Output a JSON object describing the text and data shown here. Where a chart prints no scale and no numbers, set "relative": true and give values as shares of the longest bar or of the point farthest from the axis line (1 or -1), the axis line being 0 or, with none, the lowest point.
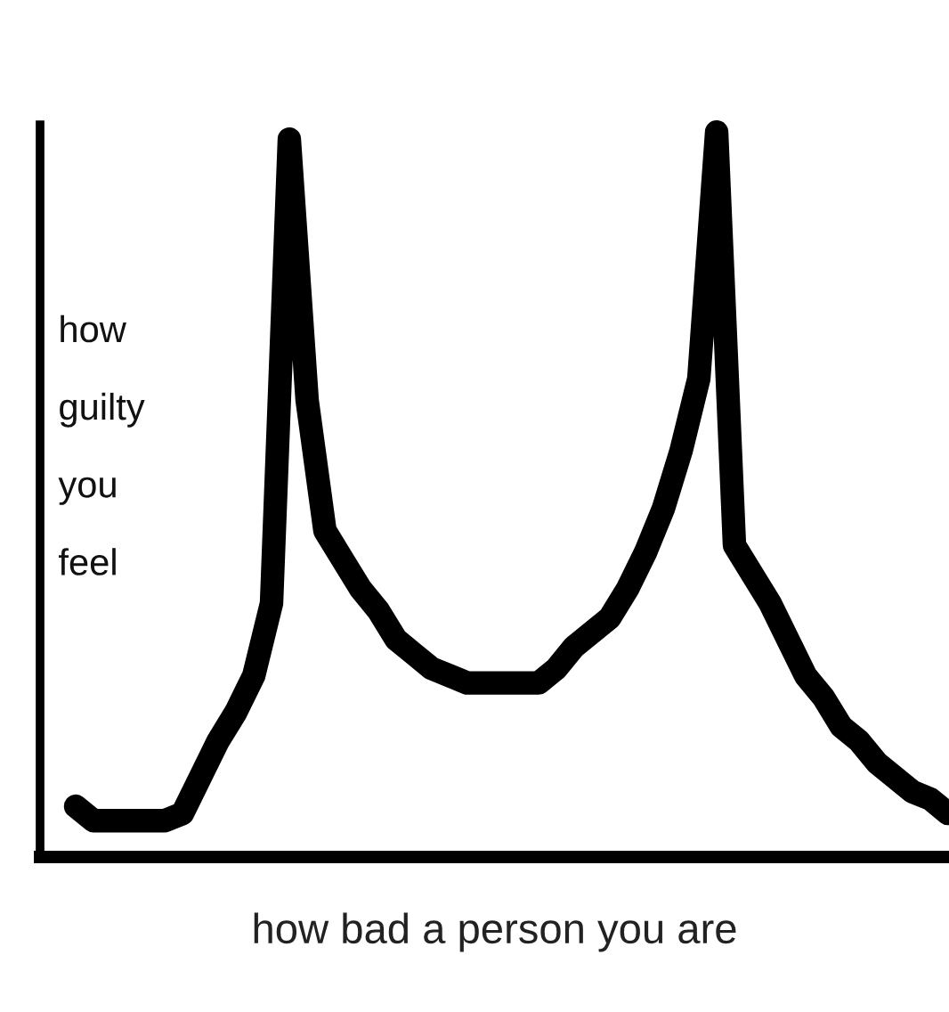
{
  "chart_data": {
    "type": "line",
    "relative": true,
    "xlabel": "how bad a person you are",
    "ylabel": "how\nguilty\nyou\nfeel",
    "categories": [
      null,
      null,
      null,
      null,
      null,
      null,
      null,
      null,
      null,
      null,
      null,
      null,
      null,
      null,
      null,
      null,
      null,
      null,
      null,
      null,
      null,
      null,
      null,
      null,
      null,
      null,
      null,
      null,
      null,
      null,
      null,
      null,
      null,
      null,
      null,
      null,
      null,
      null,
      null,
      null,
      null,
      null,
      null,
      null,
      null,
      null,
      null,
      null,
      null,
      null
    ],
    "series": [
      {
        "color": "#000000",
        "values": [
          0.07,
          0.05,
          0.05,
          0.05,
          0.05,
          0.05,
          0.06,
          0.11,
          0.16,
          0.2,
          0.25,
          0.35,
          0.99,
          0.63,
          0.45,
          0.41,
          0.37,
          0.34,
          0.3,
          0.28,
          0.26,
          0.25,
          0.24,
          0.24,
          0.24,
          0.24,
          0.24,
          0.26,
          0.29,
          0.31,
          0.33,
          0.37,
          0.42,
          0.48,
          0.56,
          0.66,
          1.0,
          0.43,
          0.39,
          0.35,
          0.3,
          0.25,
          0.22,
          0.18,
          0.16,
          0.13,
          0.11,
          0.09,
          0.08,
          0.06
        ]
      }
    ],
    "legend": false,
    "line_style": "solid"
  }
}
